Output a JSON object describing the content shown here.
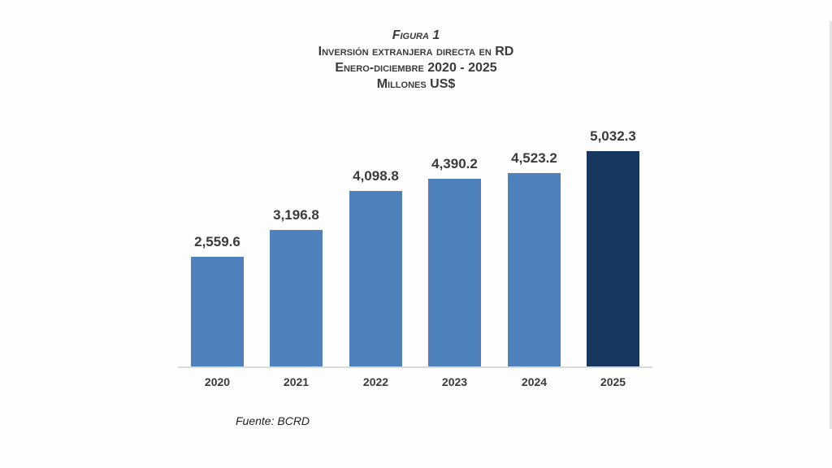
{
  "header": {
    "figure_label": "Figura 1",
    "title": "Inversión extranjera directa en RD",
    "period": "Enero-diciembre 2020 - 2025",
    "units": "Millones US$"
  },
  "source": "Fuente: BCRD",
  "colors": {
    "bar": "#4f81bd",
    "highlight": "#17375e",
    "text": "#3a3a3a",
    "axis": "#d9d9d9"
  },
  "bars": [
    {
      "year": "2020",
      "label": "2,559.6"
    },
    {
      "year": "2021",
      "label": "3,196.8"
    },
    {
      "year": "2022",
      "label": "4,098.8"
    },
    {
      "year": "2023",
      "label": "4,390.2"
    },
    {
      "year": "2024",
      "label": "4,523.2"
    },
    {
      "year": "2025",
      "label": "5,032.3"
    }
  ],
  "chart_data": {
    "type": "bar",
    "title": "Figura 1 — Inversión extranjera directa en RD, Enero-diciembre 2020 - 2025, Millones US$",
    "categories": [
      "2020",
      "2021",
      "2022",
      "2023",
      "2024",
      "2025"
    ],
    "values": [
      2559.6,
      3196.8,
      4098.8,
      4390.2,
      4523.2,
      5032.3
    ],
    "data_labels": [
      "2,559.6",
      "3,196.8",
      "4,098.8",
      "4,390.2",
      "4,523.2",
      "5,032.3"
    ],
    "xlabel": "",
    "ylabel": "Millones US$",
    "ylim": [
      0,
      5032.3
    ],
    "grid": false,
    "legend": "none",
    "highlight_category": "2025",
    "annotations": [
      "Fuente: BCRD"
    ]
  }
}
